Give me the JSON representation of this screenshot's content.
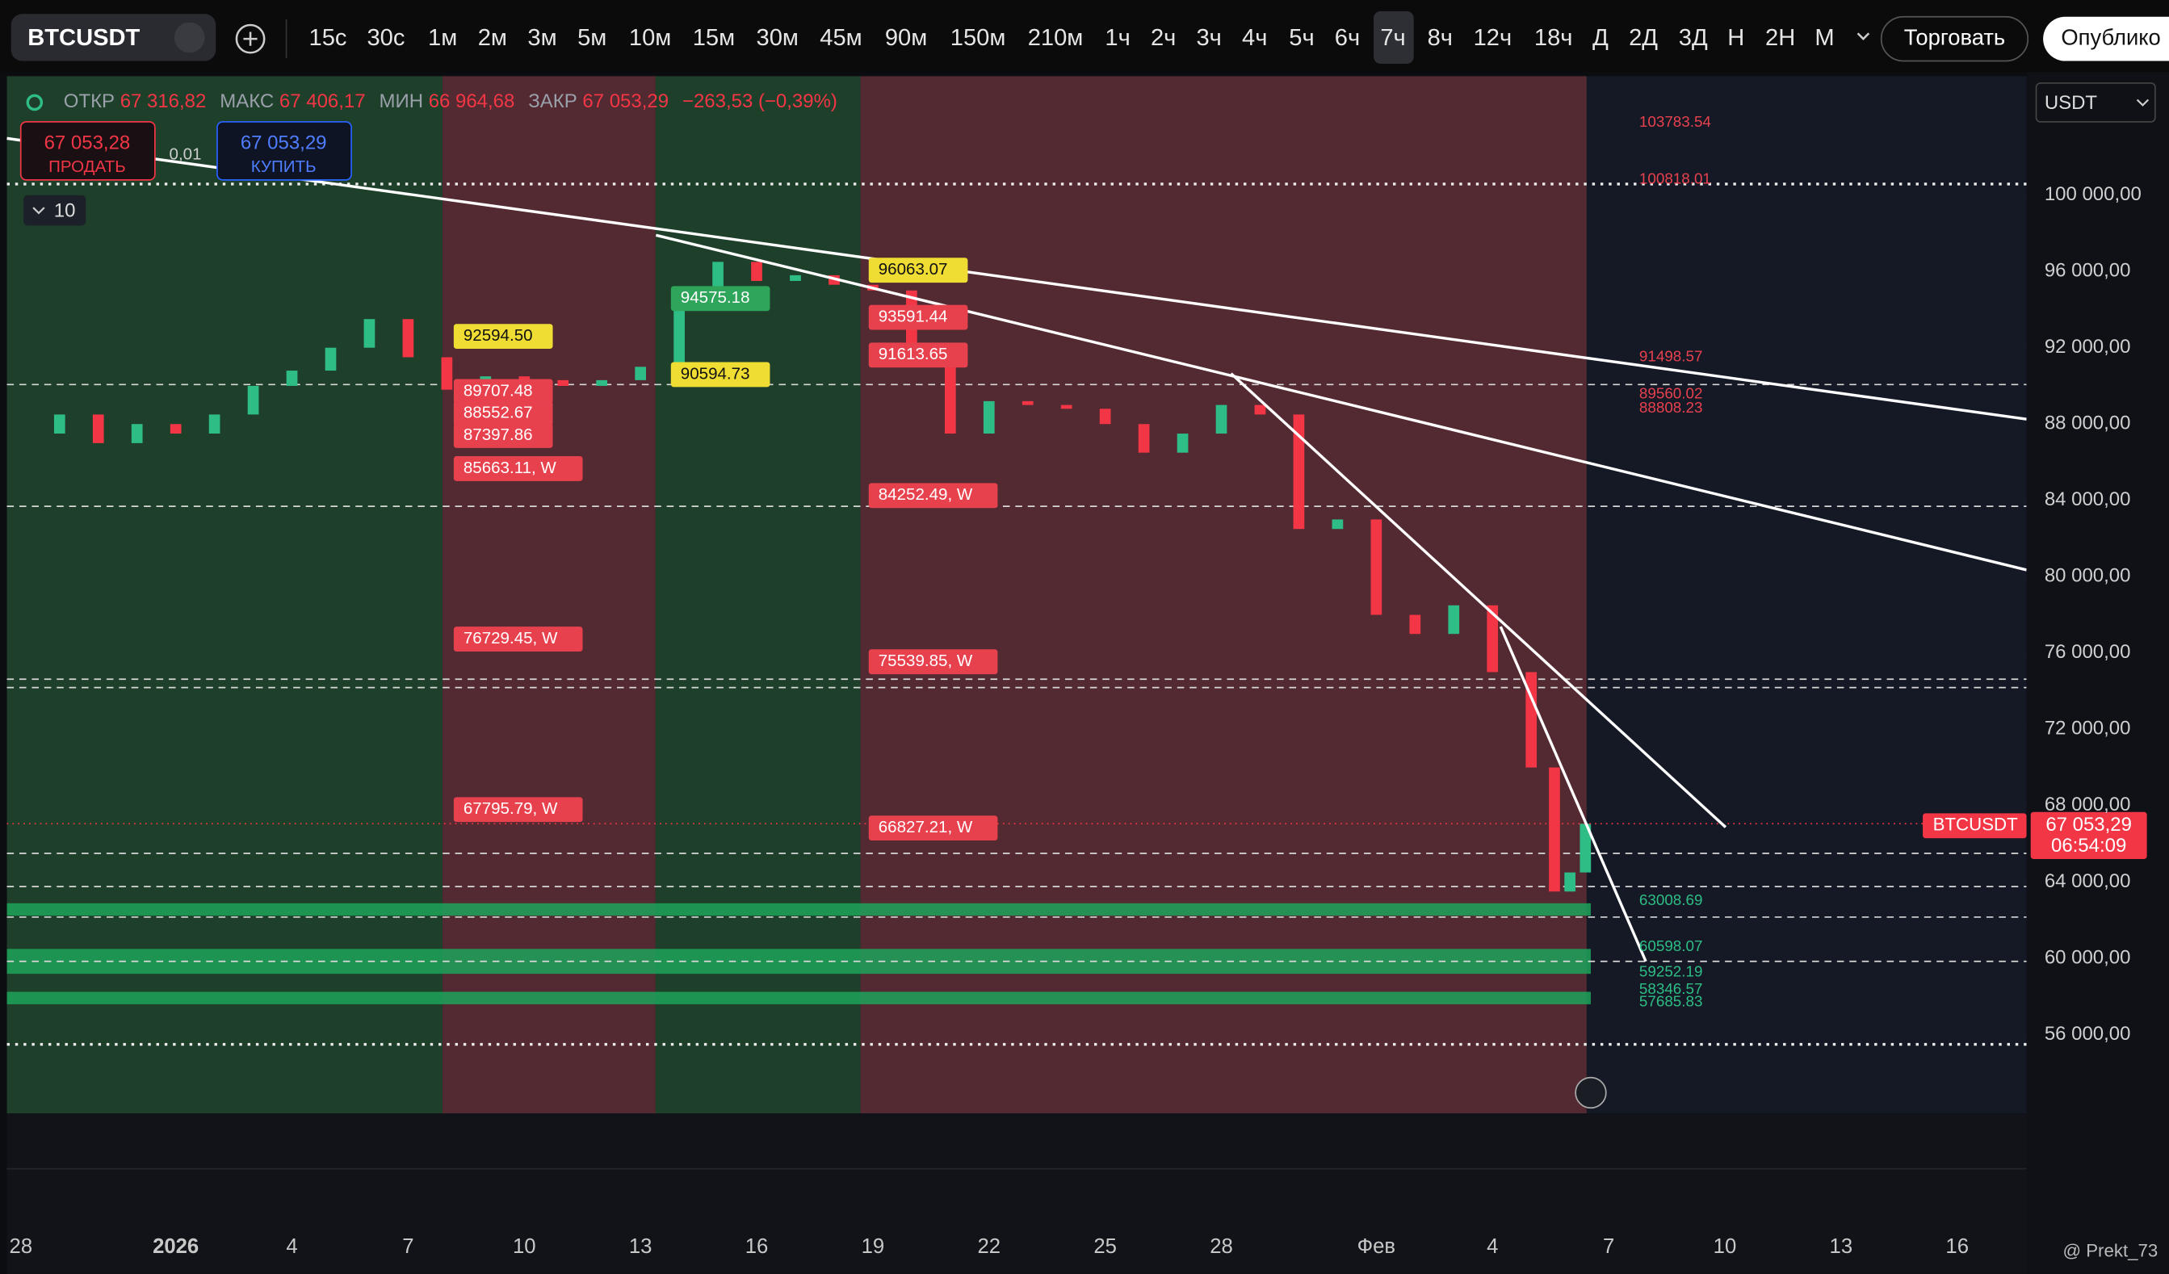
{
  "toolbar": {
    "symbol": "BTCUSDT",
    "intervals": [
      "15с",
      "30с",
      "1м",
      "2м",
      "3м",
      "5м",
      "10м",
      "15м",
      "30м",
      "45м",
      "90м",
      "150м",
      "210м",
      "1ч",
      "2ч",
      "3ч",
      "4ч",
      "5ч",
      "6ч",
      "7ч",
      "8ч",
      "12ч",
      "18ч",
      "Д",
      "2Д",
      "3Д",
      "Н",
      "2Н",
      "М"
    ],
    "selected_interval": "7ч",
    "trade_button": "Торговать",
    "publish_button": "Опублико"
  },
  "legend": {
    "open_label": "ОТКР",
    "open": "67 316,82",
    "high_label": "МАКС",
    "high": "67 406,17",
    "low_label": "МИН",
    "low": "66 964,68",
    "close_label": "ЗАКР",
    "close": "67 053,29",
    "change": "−263,53 (−0,39%)"
  },
  "order_panel": {
    "sell_price": "67 053,28",
    "sell_label": "ПРОДАТЬ",
    "spread": "0,01",
    "buy_price": "67 053,29",
    "buy_label": "КУПИТЬ",
    "indicators_count": "10"
  },
  "currency": "USDT",
  "price_tag": {
    "symbol": "BTCUSDT",
    "price": "67 053,29",
    "countdown": "06:54:09"
  },
  "watermark": "@ Prekt_73",
  "chart_data": {
    "type": "candlestick",
    "x": [
      0,
      1,
      2,
      3,
      4,
      5,
      6,
      7,
      8,
      9,
      10,
      11,
      12,
      13,
      14,
      15,
      16,
      17,
      18,
      19,
      20,
      21,
      22,
      23,
      24,
      25,
      26,
      27,
      28,
      29,
      30,
      31,
      32,
      33,
      34,
      35,
      36,
      37,
      38,
      39,
      39.6,
      40,
      40.4
    ],
    "values": [
      87500,
      88500,
      87000,
      88000,
      87500,
      88500,
      90000,
      90800,
      92000,
      93500,
      91500,
      89800,
      90500,
      90300,
      90000,
      90300,
      91000,
      95000,
      96500,
      95500,
      95800,
      95300,
      95000,
      91500,
      87500,
      89200,
      89000,
      88800,
      88000,
      86500,
      87500,
      89000,
      88500,
      82500,
      83000,
      78000,
      77000,
      78500,
      75000,
      70000,
      63500,
      64500,
      67053.29
    ],
    "up_color": "#2ebd85",
    "down_color": "#f23645",
    "xlim": [
      -0.36,
      51.79
    ],
    "xticks": [
      {
        "value": 0,
        "label": "28"
      },
      {
        "value": 4,
        "label": "2026"
      },
      {
        "value": 7,
        "label": "4"
      },
      {
        "value": 10,
        "label": "7"
      },
      {
        "value": 13,
        "label": "10"
      },
      {
        "value": 16,
        "label": "13"
      },
      {
        "value": 19,
        "label": "16"
      },
      {
        "value": 22,
        "label": "19"
      },
      {
        "value": 25,
        "label": "22"
      },
      {
        "value": 28,
        "label": "25"
      },
      {
        "value": 31,
        "label": "28"
      },
      {
        "value": 35,
        "label": "Фев"
      },
      {
        "value": 38,
        "label": "4"
      },
      {
        "value": 41,
        "label": "7"
      },
      {
        "value": 44,
        "label": "10"
      },
      {
        "value": 47,
        "label": "13"
      },
      {
        "value": 50,
        "label": "16"
      }
    ],
    "ylim": [
      51870,
      106230
    ],
    "yticks": [
      {
        "value": 100000,
        "label": "100 000,00"
      },
      {
        "value": 96000,
        "label": "96 000,00"
      },
      {
        "value": 92000,
        "label": "92 000,00"
      },
      {
        "value": 88000,
        "label": "88 000,00"
      },
      {
        "value": 84000,
        "label": "84 000,00"
      },
      {
        "value": 80000,
        "label": "80 000,00"
      },
      {
        "value": 76000,
        "label": "76 000,00"
      },
      {
        "value": 72000,
        "label": "72 000,00"
      },
      {
        "value": 68000,
        "label": "68 000,00"
      },
      {
        "value": 64000,
        "label": "64 000,00"
      },
      {
        "value": 60000,
        "label": "60 000,00"
      },
      {
        "value": 56000,
        "label": "56 000,00"
      }
    ],
    "zones": [
      {
        "from": -0.36,
        "to": 10.89,
        "color": "#1e3f2a"
      },
      {
        "from": 10.89,
        "to": 16.39,
        "color": "#532a31"
      },
      {
        "from": 16.39,
        "to": 21.68,
        "color": "#1e3f2a"
      },
      {
        "from": 21.68,
        "to": 40.43,
        "color": "#532a31"
      }
    ],
    "support_zones": [
      [
        62233,
        62885
      ],
      [
        59188,
        60493
      ],
      [
        57593,
        58245
      ]
    ],
    "support_color": "#1fa35a",
    "dashed_levels": [
      90070,
      83690,
      74630,
      74190,
      65500,
      63760,
      62160,
      59840
    ],
    "dotted_levels": [
      100580,
      55490
    ],
    "resistance_labels": [
      103783.54,
      100818.01,
      91498.57,
      89560.02,
      88808.23
    ],
    "resistance_color": "#e8414e",
    "support_labels": [
      63008.69,
      60598.07,
      59252.19,
      58346.57,
      57685.83
    ],
    "support_label_color": "#2ebd85",
    "trendlines": [
      [
        [
          -0.36,
          102972
        ],
        [
          51.79,
          88256
        ]
      ],
      [
        [
          16.4,
          97898
        ],
        [
          51.79,
          80355
        ]
      ],
      [
        [
          31.25,
          90649
        ],
        [
          44.02,
          66872
        ]
      ],
      [
        [
          38.21,
          77383
        ],
        [
          41.96,
          59840
        ]
      ]
    ],
    "annotation_columns": [
      {
        "color": "#f0dd33",
        "text_color": "#111111",
        "items": [
          {
            "value": 92594.5,
            "label": "92594.50"
          }
        ]
      },
      {
        "color": "#e8414e",
        "text_color": "#ffffff",
        "items": [
          89707.48,
          88552.67,
          87397.86,
          {
            "value": 85663.11,
            "label": "85663.11, W"
          },
          {
            "value": 76729.45,
            "label": "76729.45, W"
          },
          {
            "value": 67795.79,
            "label": "67795.79, W"
          }
        ]
      },
      {
        "color": "#f0dd33",
        "text_color": "#111111",
        "items": [
          90594.73
        ]
      },
      {
        "color": "#2ea55a",
        "text_color": "#ffffff",
        "items": [
          94575.18
        ]
      },
      {
        "color": "#f0dd33",
        "text_color": "#111111",
        "items": [
          96063.07
        ]
      },
      {
        "color": "#e8414e",
        "text_color": "#ffffff",
        "items": [
          93591.44,
          91613.65,
          {
            "value": 84252.49,
            "label": "84252.49, W"
          },
          {
            "value": 75539.85,
            "label": "75539.85, W"
          },
          {
            "value": 66827.21,
            "label": "66827.21, W"
          }
        ]
      }
    ]
  }
}
